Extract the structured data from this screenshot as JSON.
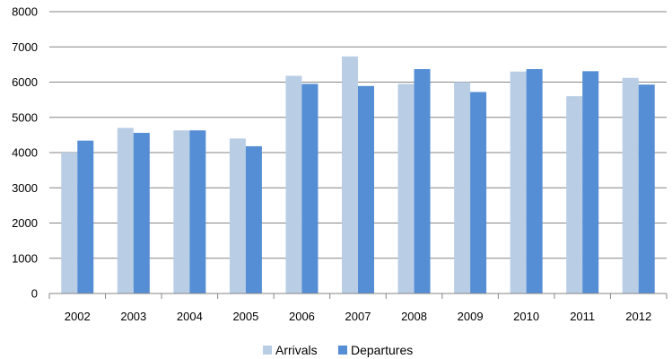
{
  "chart_data": {
    "type": "bar",
    "categories": [
      "2002",
      "2003",
      "2004",
      "2005",
      "2006",
      "2007",
      "2008",
      "2009",
      "2010",
      "2011",
      "2012"
    ],
    "series": [
      {
        "name": "Arrivals",
        "color": "#b9cde5",
        "values": [
          4000,
          4700,
          4630,
          4400,
          6180,
          6730,
          5950,
          6000,
          6300,
          5600,
          6120
        ]
      },
      {
        "name": "Departures",
        "color": "#558ed5",
        "values": [
          4340,
          4560,
          4630,
          4180,
          5950,
          5890,
          6370,
          5720,
          6370,
          6310,
          5930
        ]
      }
    ],
    "title": "",
    "xlabel": "",
    "ylabel": "",
    "ylim": [
      0,
      8000
    ],
    "yticks": [
      "0",
      "1000",
      "2000",
      "3000",
      "4000",
      "5000",
      "6000",
      "7000",
      "8000"
    ],
    "grid": true,
    "legend_position": "bottom"
  }
}
